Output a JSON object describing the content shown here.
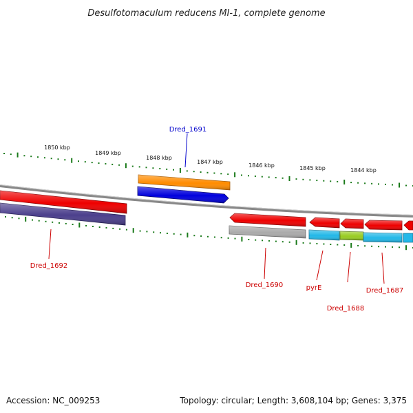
{
  "title": "Desulfotomaculum reducens MI-1, complete genome",
  "footer": {
    "accession": "Accession: NC_009253",
    "summary": "Topology: circular; Length: 3,608,104 bp; Genes: 3,375"
  },
  "ruler": {
    "labels": [
      "1850 kbp",
      "1849 kbp",
      "1848 kbp",
      "1847 kbp",
      "1846 kbp",
      "1845 kbp",
      "1844 kbp"
    ],
    "tick_color": "#1a7a1a"
  },
  "features": [
    {
      "name": "Dred_1691",
      "strand": "forward",
      "color": "#0000dd",
      "labeled": true,
      "label_color": "#0000cc"
    },
    {
      "name": "Dred_1691",
      "strand": "forward",
      "track": "cds",
      "color": "#ff8c00",
      "labeled": false
    },
    {
      "name": "Dred_1692",
      "strand": "reverse",
      "color": "#ee0000",
      "labeled": true,
      "label_color": "#cc0000"
    },
    {
      "name": "Dred_1692",
      "strand": "reverse",
      "track": "cds",
      "color": "#4b3f8c",
      "labeled": false
    },
    {
      "name": "Dred_1690",
      "strand": "reverse",
      "color": "#ee0000",
      "labeled": true,
      "label_color": "#cc0000"
    },
    {
      "name": "Dred_1690",
      "strand": "reverse",
      "track": "cds",
      "color": "#aaaaaa",
      "labeled": false
    },
    {
      "name": "pyrE",
      "strand": "reverse",
      "color": "#ee0000",
      "labeled": true,
      "label_color": "#cc0000"
    },
    {
      "name": "pyrE",
      "strand": "reverse",
      "track": "cds",
      "color": "#22b8e8",
      "labeled": false
    },
    {
      "name": "Dred_1688",
      "strand": "reverse",
      "color": "#ee0000",
      "labeled": true,
      "label_color": "#cc0000"
    },
    {
      "name": "Dred_1688",
      "strand": "reverse",
      "track": "cds",
      "color": "#99cc22",
      "labeled": false
    },
    {
      "name": "Dred_1687",
      "strand": "reverse",
      "color": "#ee0000",
      "labeled": true,
      "label_color": "#cc0000"
    },
    {
      "name": "Dred_1687",
      "strand": "reverse",
      "track": "cds",
      "color": "#22b8e8",
      "labeled": false
    }
  ]
}
